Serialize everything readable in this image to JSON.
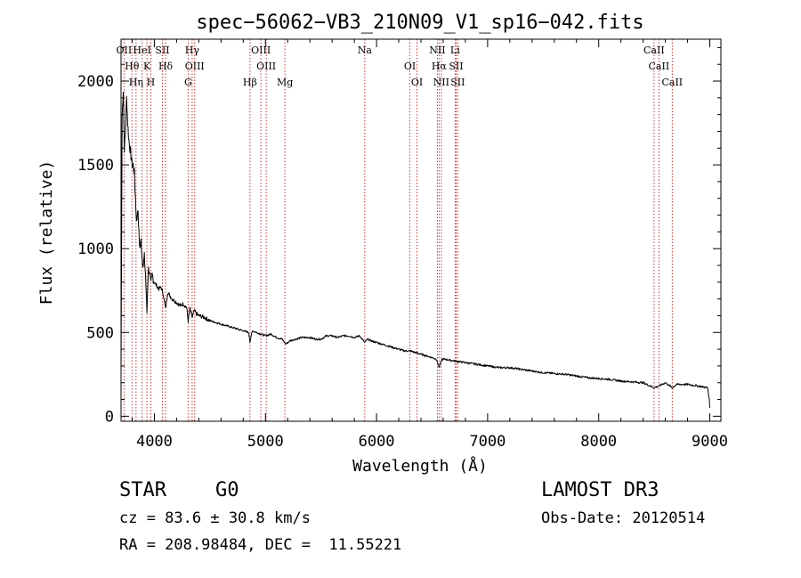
{
  "chart_data": {
    "type": "line",
    "title": "spec−56062−VB3_210N09_V1_sp16−042.fits",
    "xlabel": "Wavelength (Å)",
    "ylabel": "Flux (relative)",
    "xlim": [
      3700,
      9100
    ],
    "ylim": [
      -30,
      2250
    ],
    "x_ticks": [
      4000,
      5000,
      6000,
      7000,
      8000,
      9000
    ],
    "y_ticks": [
      0,
      500,
      1000,
      1500,
      2000
    ],
    "series": [
      {
        "name": "spectrum",
        "x": [
          3700,
          3710,
          3720,
          3730,
          3740,
          3750,
          3760,
          3770,
          3780,
          3790,
          3800,
          3810,
          3820,
          3830,
          3840,
          3850,
          3860,
          3870,
          3880,
          3890,
          3900,
          3910,
          3920,
          3933,
          3945,
          3955,
          3968,
          3980,
          3990,
          4000,
          4020,
          4040,
          4060,
          4080,
          4101,
          4120,
          4140,
          4160,
          4180,
          4200,
          4230,
          4260,
          4290,
          4305,
          4320,
          4340,
          4360,
          4380,
          4400,
          4450,
          4500,
          4550,
          4600,
          4650,
          4700,
          4750,
          4800,
          4850,
          4861,
          4880,
          4920,
          4960,
          5000,
          5050,
          5100,
          5150,
          5183,
          5220,
          5270,
          5330,
          5400,
          5450,
          5500,
          5550,
          5600,
          5650,
          5700,
          5750,
          5800,
          5850,
          5893,
          5920,
          5950,
          6000,
          6050,
          6100,
          6150,
          6200,
          6250,
          6300,
          6350,
          6400,
          6450,
          6500,
          6540,
          6563,
          6590,
          6620,
          6700,
          6800,
          6900,
          7000,
          7100,
          7200,
          7300,
          7400,
          7500,
          7600,
          7700,
          7800,
          7900,
          8000,
          8100,
          8200,
          8300,
          8400,
          8498,
          8542,
          8600,
          8662,
          8700,
          8800,
          8900,
          8980,
          8995,
          9000
        ],
        "y": [
          250,
          1800,
          1950,
          1600,
          1700,
          1900,
          1750,
          1650,
          1600,
          1550,
          1500,
          1500,
          1450,
          1300,
          1150,
          1250,
          1100,
          1000,
          1050,
          950,
          900,
          950,
          850,
          620,
          880,
          870,
          780,
          840,
          820,
          800,
          780,
          760,
          770,
          730,
          640,
          740,
          720,
          700,
          690,
          680,
          660,
          670,
          650,
          570,
          640,
          590,
          630,
          610,
          600,
          590,
          570,
          560,
          550,
          540,
          530,
          520,
          510,
          500,
          440,
          510,
          500,
          490,
          480,
          490,
          470,
          460,
          430,
          450,
          460,
          470,
          470,
          460,
          460,
          480,
          480,
          470,
          480,
          480,
          470,
          480,
          440,
          460,
          450,
          440,
          430,
          420,
          410,
          400,
          390,
          390,
          380,
          370,
          360,
          350,
          340,
          290,
          340,
          340,
          330,
          320,
          310,
          300,
          290,
          290,
          280,
          270,
          260,
          255,
          250,
          240,
          230,
          225,
          220,
          210,
          205,
          200,
          170,
          180,
          200,
          170,
          190,
          190,
          180,
          170,
          100,
          50
        ]
      }
    ],
    "lines": [
      {
        "label": "OII",
        "x": 3727
      },
      {
        "label": "Hθ",
        "x": 3798
      },
      {
        "label": "Hη",
        "x": 3835
      },
      {
        "label": "HeI",
        "x": 3889
      },
      {
        "label": "K",
        "x": 3933
      },
      {
        "label": "H",
        "x": 3968
      },
      {
        "label": "SII",
        "x": 4072
      },
      {
        "label": "Hδ",
        "x": 4101
      },
      {
        "label": "G",
        "x": 4304
      },
      {
        "label": "Hγ",
        "x": 4340
      },
      {
        "label": "OIII",
        "x": 4363
      },
      {
        "label": "Hβ",
        "x": 4861
      },
      {
        "label": "OIII",
        "x": 4959
      },
      {
        "label": "OIII",
        "x": 5007
      },
      {
        "label": "Mg",
        "x": 5175
      },
      {
        "label": "Na",
        "x": 5894
      },
      {
        "label": "OI",
        "x": 6300
      },
      {
        "label": "OI",
        "x": 6364
      },
      {
        "label": "NII",
        "x": 6548
      },
      {
        "label": "Hα",
        "x": 6563
      },
      {
        "label": "NII",
        "x": 6583
      },
      {
        "label": "Li",
        "x": 6707
      },
      {
        "label": "SII",
        "x": 6716
      },
      {
        "label": "SII",
        "x": 6731
      },
      {
        "label": "CaII",
        "x": 8498
      },
      {
        "label": "CaII",
        "x": 8542
      },
      {
        "label": "CaII",
        "x": 8662
      }
    ]
  },
  "info": {
    "object_class": "STAR",
    "subclass": "G0",
    "survey": "LAMOST DR3",
    "cz": "cz = 83.6 ± 30.8 km/s",
    "obs_date": "Obs-Date: 20120514",
    "coords": "RA = 208.98484, DEC =  11.55221"
  },
  "colors": {
    "spectrum": "#000000",
    "line_markers": "#cc2222",
    "text": "#000000"
  }
}
